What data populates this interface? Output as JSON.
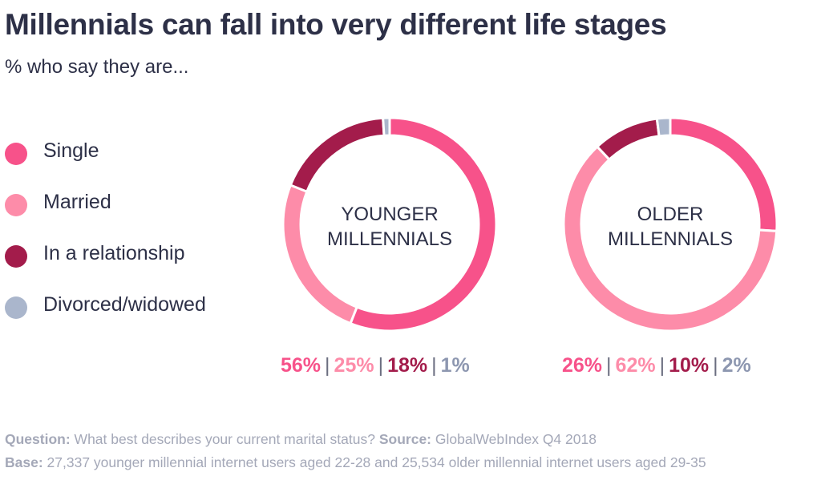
{
  "title": "Millennials can fall into very different life stages",
  "subtitle": "% who say they are...",
  "colors": {
    "single": "#f7528a",
    "married": "#fd8ca9",
    "relationship": "#a31c4b",
    "divorced": "#aab6cc"
  },
  "legend": [
    {
      "label": "Single",
      "color": "#f7528a"
    },
    {
      "label": "Married",
      "color": "#fd8ca9"
    },
    {
      "label": "In a relationship",
      "color": "#a31c4b"
    },
    {
      "label": "Divorced/widowed",
      "color": "#aab6cc"
    }
  ],
  "chart_data": [
    {
      "type": "pie",
      "center_label": [
        "YOUNGER",
        "MILLENNIALS"
      ],
      "categories": [
        "Single",
        "Married",
        "In a relationship",
        "Divorced/widowed"
      ],
      "values": [
        56,
        25,
        18,
        1
      ],
      "value_labels": [
        "56%",
        "25%",
        "18%",
        "1%"
      ]
    },
    {
      "type": "pie",
      "center_label": [
        "OLDER",
        "MILLENNIALS"
      ],
      "categories": [
        "Single",
        "Married",
        "In a relationship",
        "Divorced/widowed"
      ],
      "values": [
        26,
        62,
        10,
        2
      ],
      "value_labels": [
        "26%",
        "62%",
        "10%",
        "2%"
      ]
    }
  ],
  "footer": {
    "question_label": "Question:",
    "question_text": "What best describes your current marital status?",
    "source_label": "Source:",
    "source_text": "GlobalWebIndex Q4 2018",
    "base_label": "Base:",
    "base_text": "27,337 younger millennial internet users aged 22-28 and 25,534 older millennial internet users aged 29-35"
  }
}
